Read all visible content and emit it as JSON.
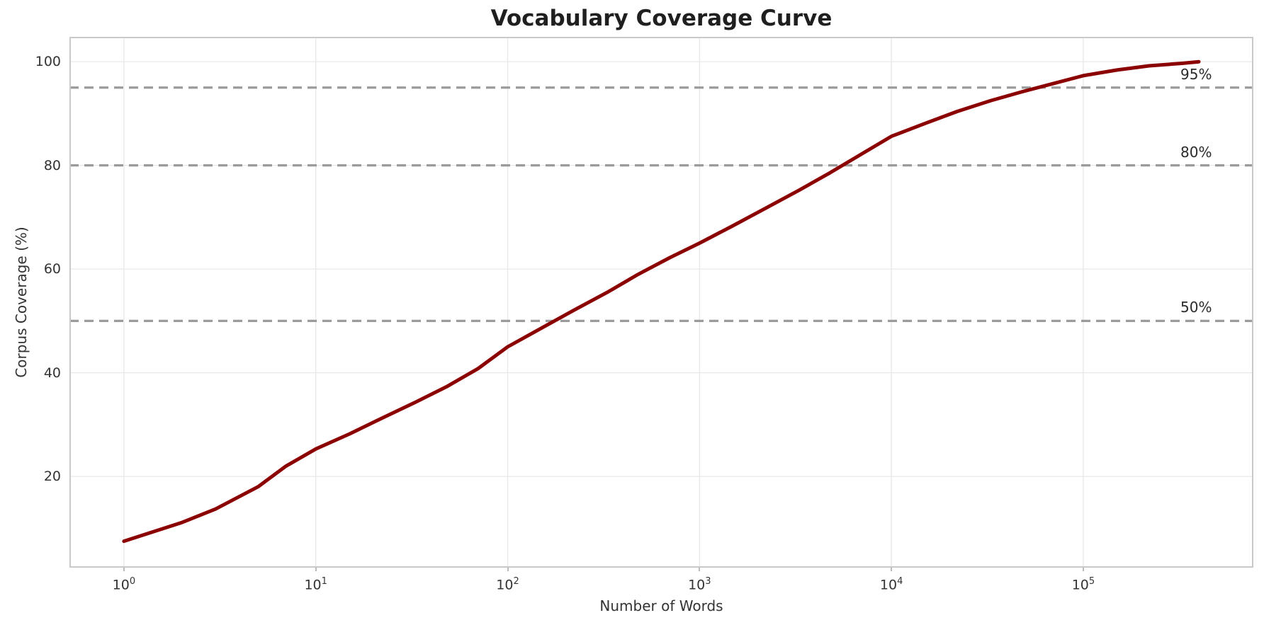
{
  "figure": {
    "title": "Vocabulary Coverage Curve",
    "x_axis_label": "Number of Words",
    "y_axis_label": "Corpus Coverage (%)"
  },
  "colors": {
    "curve": "#8b0000",
    "reference_line": "#9b9b9b",
    "reference_label_text": "#2b2b2b",
    "grid": "#e8e8e8",
    "spine": "#c9c9c9",
    "title_text": "#1f1f1f",
    "label_text": "#333333",
    "background": "#ffffff"
  },
  "chart_data": {
    "type": "line",
    "title": "Vocabulary Coverage Curve",
    "xlabel": "Number of Words",
    "ylabel": "Corpus Coverage (%)",
    "x_scale": "log",
    "xlim": [
      0.52,
      770000
    ],
    "ylim": [
      2.4,
      104.8
    ],
    "grid": true,
    "legend": false,
    "x_ticks": [
      {
        "value": 1,
        "base": "10",
        "exp": "0"
      },
      {
        "value": 10,
        "base": "10",
        "exp": "1"
      },
      {
        "value": 100,
        "base": "10",
        "exp": "2"
      },
      {
        "value": 1000,
        "base": "10",
        "exp": "3"
      },
      {
        "value": 10000,
        "base": "10",
        "exp": "4"
      },
      {
        "value": 100000,
        "base": "10",
        "exp": "5"
      }
    ],
    "y_ticks": [
      20,
      40,
      60,
      80,
      100
    ],
    "series": [
      {
        "name": "vocabulary-coverage",
        "color": "#8b0000",
        "style": "solid",
        "line_width": 5,
        "points": [
          [
            1,
            7.5
          ],
          [
            2,
            11.1
          ],
          [
            3,
            13.7
          ],
          [
            5,
            18.0
          ],
          [
            7,
            22.0
          ],
          [
            10,
            25.3
          ],
          [
            15,
            28.2
          ],
          [
            22,
            31.2
          ],
          [
            33,
            34.3
          ],
          [
            48,
            37.3
          ],
          [
            70,
            40.8
          ],
          [
            100,
            45.0
          ],
          [
            150,
            48.6
          ],
          [
            220,
            52.0
          ],
          [
            330,
            55.5
          ],
          [
            480,
            59.0
          ],
          [
            700,
            62.2
          ],
          [
            1000,
            65.0
          ],
          [
            1500,
            68.4
          ],
          [
            2200,
            71.7
          ],
          [
            3300,
            75.2
          ],
          [
            4800,
            78.6
          ],
          [
            7000,
            82.2
          ],
          [
            10000,
            85.6
          ],
          [
            15000,
            88.1
          ],
          [
            22000,
            90.4
          ],
          [
            33000,
            92.5
          ],
          [
            48000,
            94.2
          ],
          [
            70000,
            95.8
          ],
          [
            100000,
            97.3
          ],
          [
            150000,
            98.4
          ],
          [
            220000,
            99.2
          ],
          [
            330000,
            99.7
          ],
          [
            400000,
            100.0
          ]
        ]
      }
    ],
    "reference_lines": [
      {
        "y": 50,
        "label": "50%",
        "style": "dashed",
        "color": "#9b9b9b"
      },
      {
        "y": 80,
        "label": "80%",
        "style": "dashed",
        "color": "#9b9b9b"
      },
      {
        "y": 95,
        "label": "95%",
        "style": "dashed",
        "color": "#9b9b9b"
      }
    ]
  }
}
